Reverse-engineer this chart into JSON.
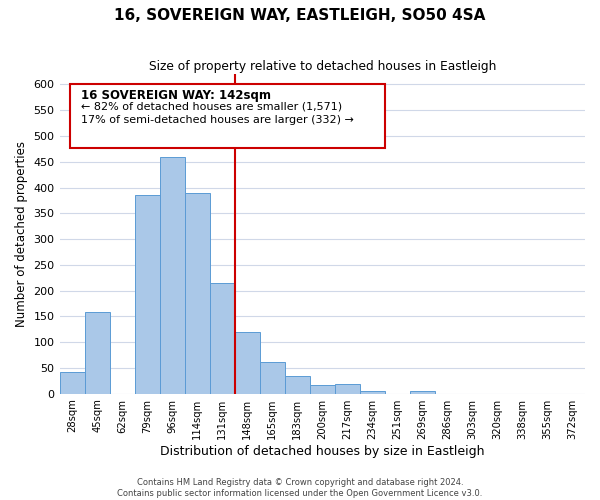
{
  "title": "16, SOVEREIGN WAY, EASTLEIGH, SO50 4SA",
  "subtitle": "Size of property relative to detached houses in Eastleigh",
  "xlabel": "Distribution of detached houses by size in Eastleigh",
  "ylabel": "Number of detached properties",
  "bar_labels": [
    "28sqm",
    "45sqm",
    "62sqm",
    "79sqm",
    "96sqm",
    "114sqm",
    "131sqm",
    "148sqm",
    "165sqm",
    "183sqm",
    "200sqm",
    "217sqm",
    "234sqm",
    "251sqm",
    "269sqm",
    "286sqm",
    "303sqm",
    "320sqm",
    "338sqm",
    "355sqm",
    "372sqm"
  ],
  "bar_heights": [
    42,
    158,
    0,
    385,
    460,
    390,
    215,
    120,
    62,
    35,
    17,
    19,
    6,
    0,
    5,
    0,
    0,
    0,
    0,
    0,
    0
  ],
  "bar_color": "#aac8e8",
  "bar_edge_color": "#5b9bd5",
  "vline_x": 6.5,
  "vline_color": "#cc0000",
  "annotation_title": "16 SOVEREIGN WAY: 142sqm",
  "annotation_line1": "← 82% of detached houses are smaller (1,571)",
  "annotation_line2": "17% of semi-detached houses are larger (332) →",
  "annotation_box_edge": "#cc0000",
  "footer1": "Contains HM Land Registry data © Crown copyright and database right 2024.",
  "footer2": "Contains public sector information licensed under the Open Government Licence v3.0.",
  "ylim": [
    0,
    620
  ],
  "yticks": [
    0,
    50,
    100,
    150,
    200,
    250,
    300,
    350,
    400,
    450,
    500,
    550,
    600
  ],
  "background_color": "#ffffff",
  "grid_color": "#d0d8e8"
}
